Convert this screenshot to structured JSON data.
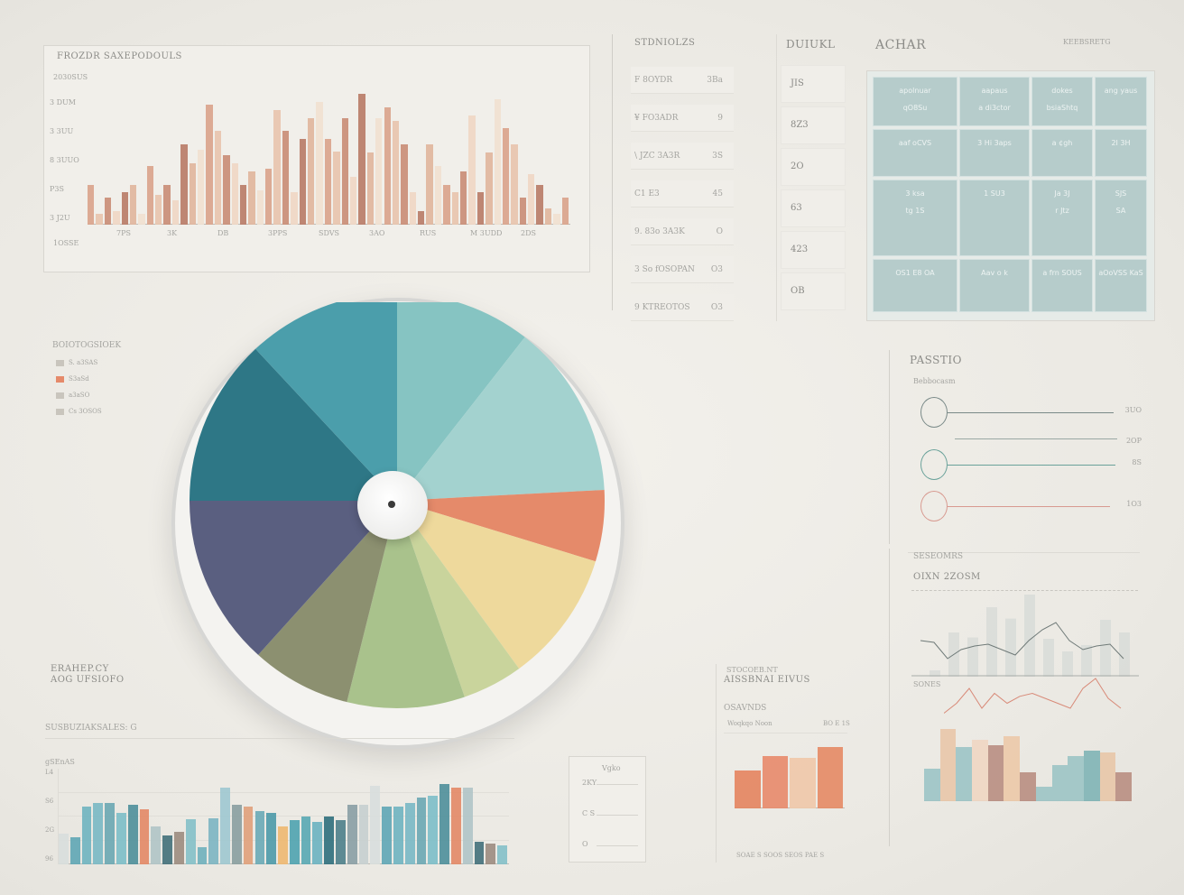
{
  "top_chart": {
    "title": "FROZDR SAXEPODOULS",
    "y_title": "2030SUS",
    "y_ticks": [
      "3 DUM",
      "3 3UU",
      "8 3UUO",
      "P3S",
      "3 J2U"
    ],
    "x_ticks": [
      "7PS",
      "3K",
      "DB",
      "3PPS",
      "SDVS",
      "3AO",
      "RUS",
      "M 3UDD",
      "2DS"
    ],
    "footer": "1OSSE",
    "values": [
      30,
      8,
      20,
      10,
      24,
      30,
      8,
      44,
      22,
      30,
      18,
      60,
      46,
      56,
      90,
      70,
      52,
      46,
      30,
      40,
      26,
      42,
      86,
      70,
      24,
      64,
      80,
      92,
      64,
      55,
      80,
      36,
      98,
      54,
      80,
      88,
      78,
      60,
      24,
      10,
      60,
      44,
      30,
      24,
      40,
      82,
      24,
      54,
      94,
      72,
      60,
      20,
      38,
      30,
      12,
      8,
      20
    ],
    "colors": [
      "#d9a28b",
      "#e8c3ad",
      "#c98c76",
      "#efd6c4",
      "#b87a66",
      "#e0b59c",
      "#f1e0d0"
    ]
  },
  "list_panel": {
    "title": "STDNIOLZS",
    "rows": [
      {
        "label": "F 8OYDR",
        "value": "3Ba"
      },
      {
        "label": "¥ FO3ADR",
        "value": "9"
      },
      {
        "label": "\\ JZC 3A3R",
        "value": "3S"
      },
      {
        "label": "C1 E3",
        "value": "45"
      },
      {
        "label": "9. 83o 3A3K",
        "value": "O"
      },
      {
        "label": "3 So fOSOPAN",
        "value": "O3"
      },
      {
        "label": "9 KTREOTOS",
        "value": "O3"
      }
    ]
  },
  "stat_column": {
    "title": "DUIUKL",
    "cells": [
      "JIS",
      "8Z3",
      "2O",
      "63",
      "423",
      "OB"
    ]
  },
  "grid_panel": {
    "title": "ACHAR",
    "subtitle": "KEEBSRETG",
    "cells": [
      [
        "apolnuar",
        "aapaus",
        "dokes",
        ""
      ],
      [
        "qO8Su",
        "a di3ctor",
        "bsiaShtq",
        "ang yaus"
      ],
      [
        "aaf oCVS",
        "3 Hi 3aps",
        "a ¢gh",
        "2I 3H"
      ],
      [
        "3 ksa",
        "1 SU3",
        "Ja 3J",
        "SJS"
      ],
      [
        "tg 1S",
        "",
        "r Jtz",
        "SA"
      ],
      [
        "OS1 E8 OA",
        "Aav o k",
        "a frn SOUS",
        "aOoVSS KaS"
      ]
    ]
  },
  "pie_chart": {
    "legend_title": "BOIOTOGSIOEK",
    "legend_items": [
      {
        "label": "S. a3SAS",
        "color": "#c9c5bd"
      },
      {
        "label": "S3aSd",
        "color": "#e58a6a"
      },
      {
        "label": "a3aSO",
        "color": "#c9c5bd"
      },
      {
        "label": "Cs 3OSOS",
        "color": "#c9c5bd"
      }
    ],
    "caption_line1": "ERAHEP.CY",
    "caption_line2": "AOG UFSIOFO"
  },
  "chart_data": {
    "type": "pie",
    "values": [
      38,
      49,
      20,
      37,
      17,
      33,
      28,
      48,
      47,
      43
    ],
    "colors": [
      "#86c4c2",
      "#a3d2cf",
      "#e58a6a",
      "#eed99c",
      "#c9d49c",
      "#a9c28c",
      "#8c9070",
      "#5a5f80",
      "#2e7786",
      "#4b9eab"
    ]
  },
  "slider_panel": {
    "title": "PASSTIO",
    "subtitle": "Bebbocasm",
    "sliders": [
      {
        "value": "3UO",
        "fraction": 0.92,
        "color": "#7a8a88"
      },
      {
        "value": "2OP",
        "fraction": 0.9,
        "color": "#9aa8a4"
      },
      {
        "value": "8S",
        "fraction": 0.93,
        "color": "#6aa29a"
      },
      {
        "value": "1O3",
        "fraction": 0.9,
        "color": "#d89a90"
      }
    ]
  },
  "right_charts": {
    "title": "SESEOMRS",
    "subtitle": "OIXN 2ZOSM",
    "label_mid": "SONES",
    "line_values": [
      40,
      38,
      20,
      30,
      34,
      36,
      30,
      24,
      40,
      52,
      60,
      40,
      30,
      34,
      36,
      20
    ],
    "gray_bars": [
      10,
      70,
      62,
      110,
      92,
      130,
      60,
      40,
      50,
      90,
      70
    ],
    "red_line": [
      10,
      30,
      60,
      20,
      50,
      30,
      44,
      50,
      40,
      30,
      20,
      60,
      80,
      40,
      20
    ],
    "bars": [
      {
        "v": 45,
        "c": "#9cc4c5"
      },
      {
        "v": 100,
        "c": "#e9c6a8"
      },
      {
        "v": 75,
        "c": "#9cc4c5"
      },
      {
        "v": 85,
        "c": "#efd6c2"
      },
      {
        "v": 78,
        "c": "#b98e82"
      },
      {
        "v": 90,
        "c": "#ecc9a8"
      },
      {
        "v": 40,
        "c": "#b98e82"
      },
      {
        "v": 20,
        "c": "#9cc4c5"
      },
      {
        "v": 50,
        "c": "#9cc4c5"
      },
      {
        "v": 62,
        "c": "#9cc4c5"
      },
      {
        "v": 70,
        "c": "#80b4b6"
      },
      {
        "v": 68,
        "c": "#e8c6a8"
      },
      {
        "v": 40,
        "c": "#b98e82"
      }
    ]
  },
  "bottom_chart": {
    "title": "SUSBUZIAKSALES: G",
    "y_title": "gSEnAS",
    "y_ticks": [
      "L4",
      "S6",
      "2G",
      "96"
    ],
    "values": [
      32,
      28,
      60,
      64,
      64,
      54,
      62,
      58,
      40,
      30,
      34,
      47,
      18,
      48,
      80,
      62,
      60,
      56,
      54,
      40,
      46,
      50,
      44,
      50,
      46,
      62,
      62,
      82,
      60,
      60,
      64,
      70,
      72,
      84,
      80,
      80,
      24,
      22,
      20
    ],
    "colors": [
      "#d8dedd",
      "#5fa6b5",
      "#6fb4c0",
      "#79b8c4",
      "#6aa7b3",
      "#7cbec8",
      "#4e8f9a",
      "#e38866",
      "#b0c4c6",
      "#42707a",
      "#9c8c80",
      "#84c0c8",
      "#6fb0bd",
      "#7cb5c2",
      "#9ec8d0",
      "#8a9ea0",
      "#e0a07a",
      "#6aaab6",
      "#4d9aa8",
      "#eeb870",
      "#4fa3af",
      "#59a9b3",
      "#6cb2c0",
      "#2f6f7c",
      "#4e7f8a",
      "#8a9ea4",
      "#c6cfcf"
    ]
  },
  "mini_panel": {
    "title": "Vgko",
    "rows": [
      "2KY",
      "C S",
      "O"
    ]
  },
  "small_bars": {
    "title_line1": "STOCOEB.NT",
    "title_line2": "AISSBNAI EIVUS",
    "label": "OSAVNDS",
    "sublabel": "Woqkqo Noon",
    "value_label": "BO E 1S",
    "footer": "SOAE S  SOOS SEOS PAE S",
    "values": [
      42,
      58,
      56,
      68
    ],
    "colors": [
      "#e4845e",
      "#e8896a",
      "#f0c8a8",
      "#e68a64"
    ]
  }
}
